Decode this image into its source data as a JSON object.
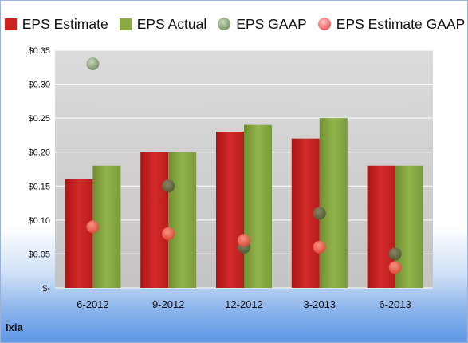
{
  "chart_data": {
    "type": "bar",
    "categories": [
      "6-2012",
      "9-2012",
      "12-2012",
      "3-2013",
      "6-2013"
    ],
    "series": [
      {
        "name": "EPS Estimate",
        "kind": "bar",
        "color": "#cc2222",
        "values": [
          0.16,
          0.2,
          0.23,
          0.22,
          0.18
        ]
      },
      {
        "name": "EPS Actual",
        "kind": "bar",
        "color": "#8aaa44",
        "values": [
          0.18,
          0.2,
          0.24,
          0.25,
          0.18
        ]
      },
      {
        "name": "EPS GAAP",
        "kind": "scatter",
        "color": "#7d9a68",
        "values": [
          0.33,
          0.15,
          0.06,
          0.11,
          0.05
        ]
      },
      {
        "name": "EPS Estimate GAAP",
        "kind": "scatter",
        "color": "#ee6060",
        "values": [
          0.09,
          0.08,
          0.07,
          0.06,
          0.03
        ]
      }
    ],
    "ylim": [
      0,
      0.35
    ],
    "yticks": [
      0,
      0.05,
      0.1,
      0.15,
      0.2,
      0.25,
      0.3,
      0.35
    ],
    "ytick_labels": [
      "$-",
      "$0.05",
      "$0.10",
      "$0.15",
      "$0.20",
      "$0.25",
      "$0.30",
      "$0.35"
    ],
    "grid": true,
    "legend_position": "top"
  },
  "company": "Ixia"
}
